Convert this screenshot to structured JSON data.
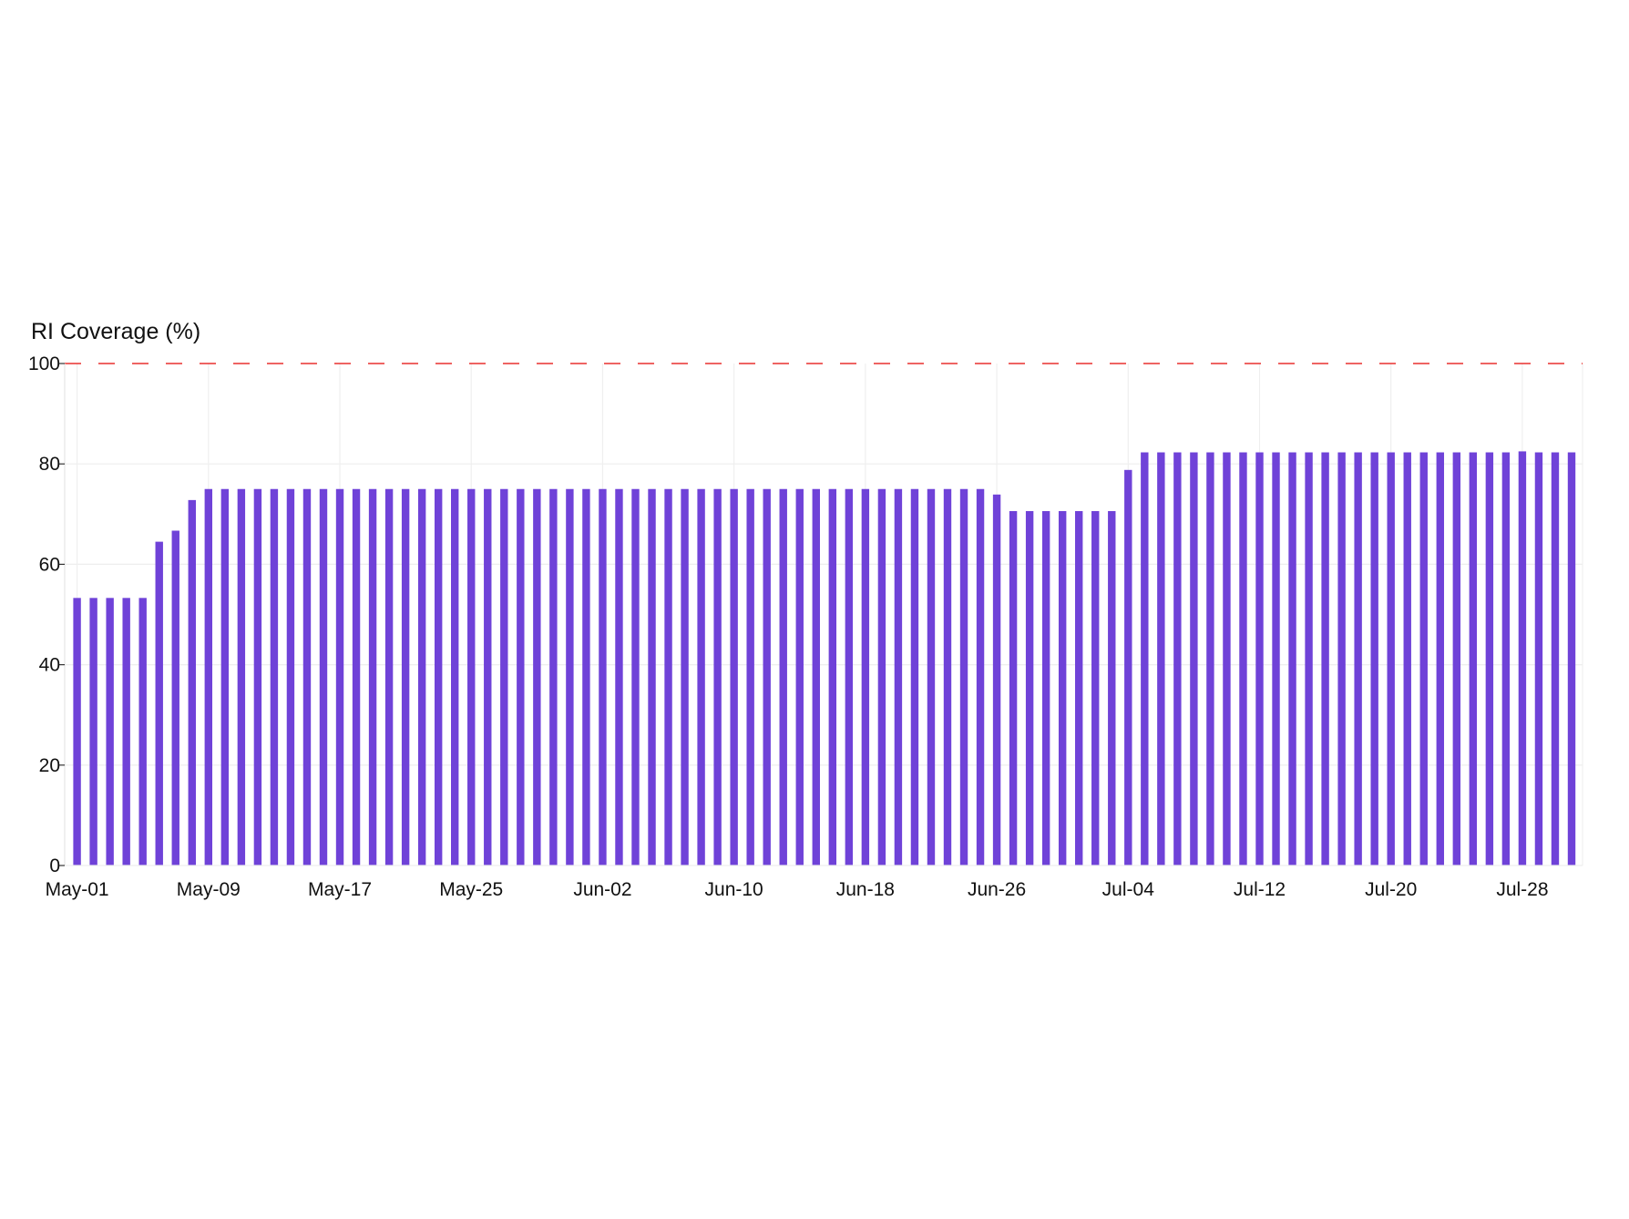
{
  "chart_data": {
    "type": "bar",
    "title": "",
    "xlabel": "",
    "ylabel": "RI Coverage (%)",
    "ylim": [
      0,
      100
    ],
    "yticks": [
      0,
      20,
      40,
      60,
      80,
      100
    ],
    "grid": true,
    "reference_line": {
      "value": 100,
      "style": "dashed",
      "color": "#e8312f"
    },
    "bar_color": "#6f42d8",
    "series_name": "RI Coverage",
    "start_date": "May-01",
    "x_tick_labels": [
      "May-01",
      "May-09",
      "May-17",
      "May-25",
      "Jun-02",
      "Jun-10",
      "Jun-18",
      "Jun-26",
      "Jul-04",
      "Jul-12",
      "Jul-20",
      "Jul-28"
    ],
    "x_tick_every_n_days": 8,
    "values": [
      53.3,
      53.3,
      53.3,
      53.3,
      53.3,
      64.5,
      66.7,
      72.8,
      75,
      75,
      75,
      75,
      75,
      75,
      75,
      75,
      75,
      75,
      75,
      75,
      75,
      75,
      75,
      75,
      75,
      75,
      75,
      75,
      75,
      75,
      75,
      75,
      75,
      75,
      75,
      75,
      75,
      75,
      75,
      75,
      75,
      75,
      75,
      75,
      75,
      75,
      75,
      75,
      75,
      75,
      75,
      75,
      75,
      75,
      75,
      75,
      73.9,
      70.6,
      70.6,
      70.6,
      70.6,
      70.6,
      70.6,
      70.6,
      78.8,
      82.3,
      82.3,
      82.3,
      82.3,
      82.3,
      82.3,
      82.3,
      82.3,
      82.3,
      82.3,
      82.3,
      82.3,
      82.3,
      82.3,
      82.3,
      82.3,
      82.3,
      82.3,
      82.3,
      82.3,
      82.3,
      82.3,
      82.3,
      82.5,
      82.3,
      82.3,
      82.3
    ]
  }
}
